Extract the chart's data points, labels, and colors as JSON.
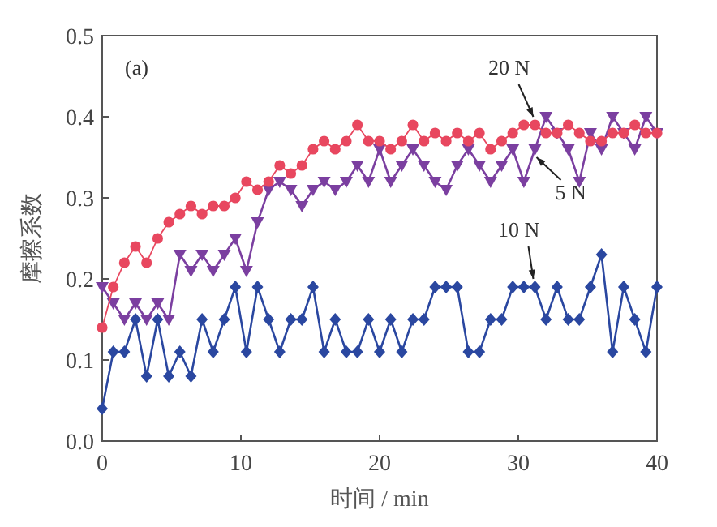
{
  "chart_data": {
    "type": "line",
    "xlabel": "时间 / min",
    "ylabel": "摩擦系数",
    "annotations": [
      "(a)"
    ],
    "x": [
      0,
      0.8,
      1.6,
      2.4,
      3.2,
      4,
      4.8,
      5.6,
      6.4,
      7.2,
      8,
      8.8,
      9.6,
      10.4,
      11.2,
      12,
      12.8,
      13.6,
      14.4,
      15.2,
      16,
      16.8,
      17.6,
      18.4,
      19.2,
      20,
      20.8,
      21.6,
      22.4,
      23.2,
      24,
      24.8,
      25.6,
      26.4,
      27.2,
      28,
      28.8,
      29.6,
      30.4,
      31.2,
      32,
      32.8,
      33.6,
      34.4,
      35.2,
      36,
      36.8,
      37.6,
      38.4,
      39.2,
      40
    ],
    "series": [
      {
        "name": "20 N",
        "color": "#e8475f",
        "marker": "circle",
        "values": [
          0.14,
          0.19,
          0.22,
          0.24,
          0.22,
          0.25,
          0.27,
          0.28,
          0.29,
          0.28,
          0.29,
          0.29,
          0.3,
          0.32,
          0.31,
          0.32,
          0.34,
          0.33,
          0.34,
          0.36,
          0.37,
          0.36,
          0.37,
          0.39,
          0.37,
          0.37,
          0.36,
          0.37,
          0.39,
          0.37,
          0.38,
          0.37,
          0.38,
          0.37,
          0.38,
          0.36,
          0.37,
          0.38,
          0.39,
          0.39,
          0.38,
          0.38,
          0.39,
          0.38,
          0.37,
          0.37,
          0.38,
          0.38,
          0.39,
          0.38,
          0.38
        ]
      },
      {
        "name": "5 N",
        "color": "#7b3fa0",
        "marker": "triangle",
        "values": [
          0.19,
          0.17,
          0.15,
          0.17,
          0.15,
          0.17,
          0.15,
          0.23,
          0.21,
          0.23,
          0.21,
          0.23,
          0.25,
          0.21,
          0.27,
          0.31,
          0.32,
          0.31,
          0.29,
          0.31,
          0.32,
          0.31,
          0.32,
          0.34,
          0.32,
          0.36,
          0.32,
          0.34,
          0.36,
          0.34,
          0.32,
          0.31,
          0.34,
          0.36,
          0.34,
          0.32,
          0.34,
          0.36,
          0.32,
          0.36,
          0.4,
          0.38,
          0.36,
          0.32,
          0.38,
          0.36,
          0.4,
          0.38,
          0.36,
          0.4,
          0.38
        ]
      },
      {
        "name": "10 N",
        "color": "#2a47a0",
        "marker": "diamond",
        "values": [
          0.04,
          0.11,
          0.11,
          0.15,
          0.08,
          0.15,
          0.08,
          0.11,
          0.08,
          0.15,
          0.11,
          0.15,
          0.19,
          0.11,
          0.19,
          0.15,
          0.11,
          0.15,
          0.15,
          0.19,
          0.11,
          0.15,
          0.11,
          0.11,
          0.15,
          0.11,
          0.15,
          0.11,
          0.15,
          0.15,
          0.19,
          0.19,
          0.19,
          0.11,
          0.11,
          0.15,
          0.15,
          0.19,
          0.19,
          0.19,
          0.15,
          0.19,
          0.15,
          0.15,
          0.19,
          0.23,
          0.11,
          0.19,
          0.15,
          0.11,
          0.19
        ]
      }
    ],
    "xlim": [
      0,
      40
    ],
    "xticks": [
      0,
      10,
      20,
      30,
      40
    ],
    "ylim": [
      0,
      0.5
    ],
    "yticks": [
      {
        "value": 0,
        "label": "0.0"
      },
      {
        "value": 0.1,
        "label": "0.1"
      },
      {
        "value": 0.2,
        "label": "0.2"
      },
      {
        "value": 0.3,
        "label": "0.3"
      },
      {
        "value": 0.4,
        "label": "0.4"
      },
      {
        "value": 0.5,
        "label": "0.5"
      }
    ],
    "grid": false,
    "legend": false
  }
}
